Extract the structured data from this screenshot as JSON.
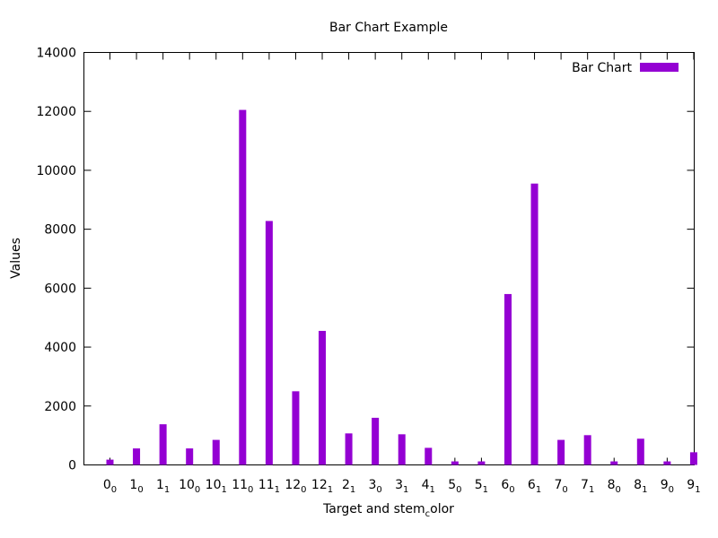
{
  "chart_data": {
    "type": "bar",
    "title": "Bar Chart Example",
    "xlabel": {
      "main": "Target and stem",
      "sub": "c",
      "rest": "olor"
    },
    "ylabel": "Values",
    "ylim": [
      0,
      14000
    ],
    "yticks": [
      0,
      2000,
      4000,
      6000,
      8000,
      10000,
      12000,
      14000
    ],
    "categories": [
      {
        "base": "0",
        "sub": "0"
      },
      {
        "base": "1",
        "sub": "0"
      },
      {
        "base": "1",
        "sub": "1"
      },
      {
        "base": "10",
        "sub": "0"
      },
      {
        "base": "10",
        "sub": "1"
      },
      {
        "base": "11",
        "sub": "0"
      },
      {
        "base": "11",
        "sub": "1"
      },
      {
        "base": "12",
        "sub": "0"
      },
      {
        "base": "12",
        "sub": "1"
      },
      {
        "base": "2",
        "sub": "1"
      },
      {
        "base": "3",
        "sub": "0"
      },
      {
        "base": "3",
        "sub": "1"
      },
      {
        "base": "4",
        "sub": "1"
      },
      {
        "base": "5",
        "sub": "0"
      },
      {
        "base": "5",
        "sub": "1"
      },
      {
        "base": "6",
        "sub": "0"
      },
      {
        "base": "6",
        "sub": "1"
      },
      {
        "base": "7",
        "sub": "0"
      },
      {
        "base": "7",
        "sub": "1"
      },
      {
        "base": "8",
        "sub": "0"
      },
      {
        "base": "8",
        "sub": "1"
      },
      {
        "base": "9",
        "sub": "0"
      },
      {
        "base": "9",
        "sub": "1"
      }
    ],
    "series": [
      {
        "name": "Bar Chart",
        "color": "#9400d3",
        "values": [
          180,
          560,
          1380,
          560,
          850,
          12050,
          8280,
          2500,
          4550,
          1070,
          1600,
          1040,
          580,
          120,
          120,
          5800,
          9550,
          850,
          1010,
          120,
          890,
          120,
          430
        ]
      }
    ],
    "legend": "top-right",
    "grid": false
  }
}
